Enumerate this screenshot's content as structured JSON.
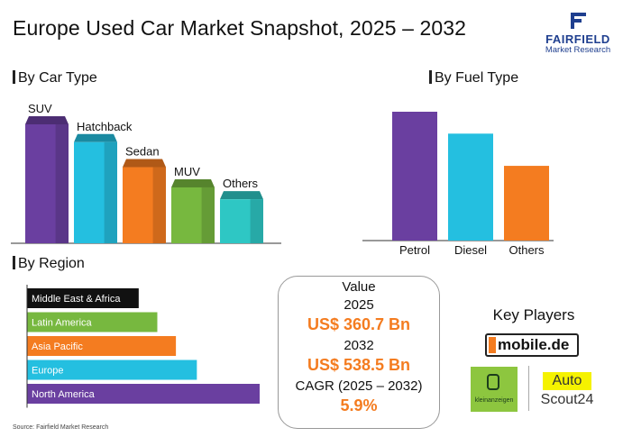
{
  "header": {
    "title": "Europe Used Car Market Snapshot, 2025 – 2032",
    "logo_brand": "FAIRFIELD",
    "logo_sub": "Market Research"
  },
  "sections": {
    "car_type": "By Car Type",
    "fuel_type": "By Fuel Type",
    "region": "By Region"
  },
  "chart_data": [
    {
      "id": "car_type",
      "type": "bar",
      "title": "By Car Type",
      "categories": [
        "SUV",
        "Hatchback",
        "Sedan",
        "MUV",
        "Others"
      ],
      "values": [
        100,
        85,
        64,
        47,
        37
      ],
      "ylim": [
        0,
        100
      ],
      "colors": [
        "#6a3fa0",
        "#24bfe0",
        "#f47c20",
        "#77b83f",
        "#2ec7c4"
      ]
    },
    {
      "id": "fuel_type",
      "type": "bar",
      "title": "By Fuel Type",
      "categories": [
        "Petrol",
        "Diesel",
        "Others"
      ],
      "values": [
        100,
        83,
        58
      ],
      "ylim": [
        0,
        100
      ],
      "colors": [
        "#6a3fa0",
        "#24bfe0",
        "#f47c20"
      ]
    },
    {
      "id": "region",
      "type": "bar",
      "orientation": "horizontal",
      "title": "By Region",
      "categories": [
        "Middle East & Africa",
        "Latin America",
        "Asia Pacific",
        "Europe",
        "North America"
      ],
      "values": [
        48,
        56,
        64,
        73,
        100
      ],
      "xlim": [
        0,
        100
      ],
      "colors": [
        "#111111",
        "#77b83f",
        "#f47c20",
        "#24bfe0",
        "#6a3fa0"
      ]
    }
  ],
  "value_panel": {
    "label": "Value",
    "year_a": "2025",
    "value_a": "US$ 360.7 Bn",
    "year_b": "2032",
    "value_b": "US$ 538.5 Bn",
    "cagr_label": "CAGR (2025 – 2032)",
    "cagr_value": "5.9%"
  },
  "key_players": {
    "title": "Key Players",
    "mobile": "mobile.de",
    "kleinanzeigen": "kleinanzeigen",
    "autoscout_a": "Auto",
    "autoscout_b": "Scout24"
  },
  "source": "Source: Fairfield Market Research"
}
